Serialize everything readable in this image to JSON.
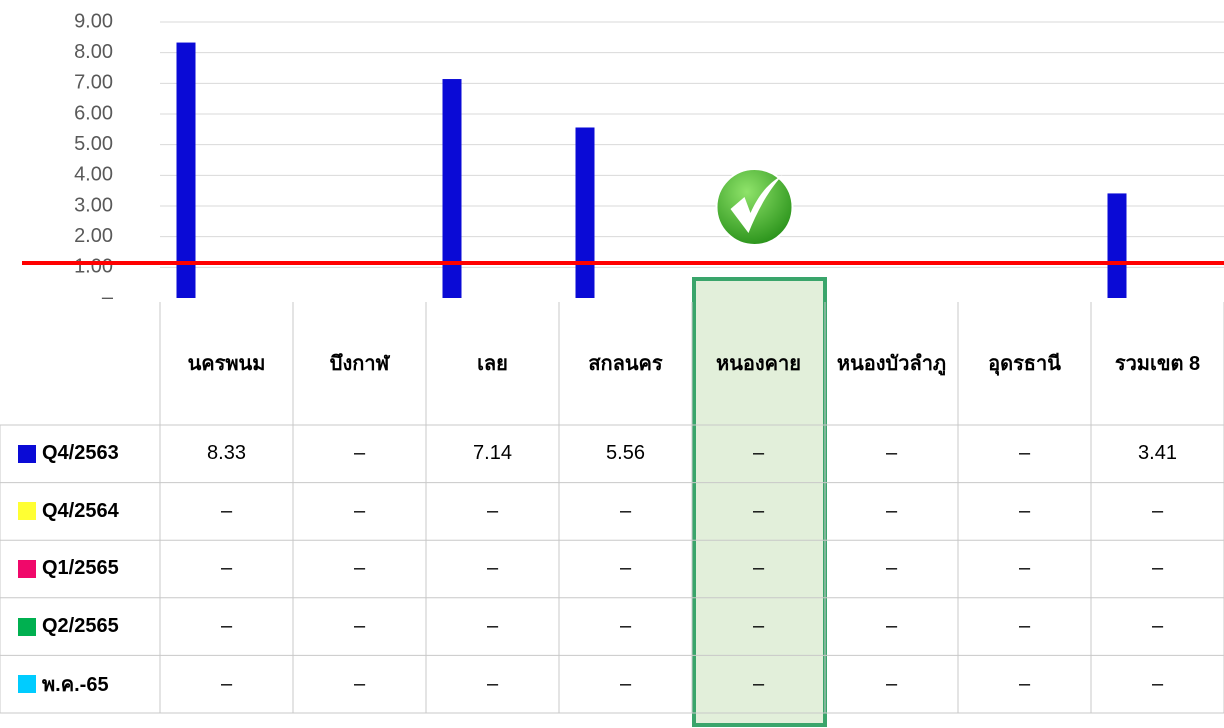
{
  "chart_data": {
    "type": "bar",
    "categories": [
      "นครพนม",
      "บึงกาฬ",
      "เลย",
      "สกลนคร",
      "หนองคาย",
      "หนองบัวลำภู",
      "อุดรธานี",
      "รวมเขต 8"
    ],
    "series": [
      {
        "name": "Q4/2563",
        "color": "#0a0ad6",
        "values": [
          8.33,
          null,
          7.14,
          5.56,
          null,
          null,
          null,
          3.41
        ],
        "value_labels": [
          "8.33",
          "–",
          "7.14",
          "5.56",
          "–",
          "–",
          "–",
          "3.41"
        ]
      },
      {
        "name": "Q4/2564",
        "color": "#ffff33",
        "values": [
          null,
          null,
          null,
          null,
          null,
          null,
          null,
          null
        ],
        "value_labels": [
          "–",
          "–",
          "–",
          "–",
          "–",
          "–",
          "–",
          "–"
        ]
      },
      {
        "name": "Q1/2565",
        "color": "#f0086a",
        "values": [
          null,
          null,
          null,
          null,
          null,
          null,
          null,
          null
        ],
        "value_labels": [
          "–",
          "–",
          "–",
          "–",
          "–",
          "–",
          "–",
          "–"
        ]
      },
      {
        "name": "Q2/2565",
        "color": "#00b050",
        "values": [
          null,
          null,
          null,
          null,
          null,
          null,
          null,
          null
        ],
        "value_labels": [
          "–",
          "–",
          "–",
          "–",
          "–",
          "–",
          "–",
          "–"
        ]
      },
      {
        "name": "พ.ค.-65",
        "color": "#00ccff",
        "values": [
          null,
          null,
          null,
          null,
          null,
          null,
          null,
          null
        ],
        "value_labels": [
          "–",
          "–",
          "–",
          "–",
          "–",
          "–",
          "–",
          "–"
        ]
      }
    ],
    "ylim": [
      0,
      9
    ],
    "yticks": [
      {
        "value": 0,
        "label": "–"
      },
      {
        "value": 1,
        "label": "1.00"
      },
      {
        "value": 2,
        "label": "2.00"
      },
      {
        "value": 3,
        "label": "3.00"
      },
      {
        "value": 4,
        "label": "4.00"
      },
      {
        "value": 5,
        "label": "5.00"
      },
      {
        "value": 6,
        "label": "6.00"
      },
      {
        "value": 7,
        "label": "7.00"
      },
      {
        "value": 8,
        "label": "8.00"
      },
      {
        "value": 9,
        "label": "9.00"
      }
    ],
    "grid": true,
    "target_line": {
      "value": 1.14,
      "color": "#ff0000"
    },
    "highlight_category": 4
  }
}
